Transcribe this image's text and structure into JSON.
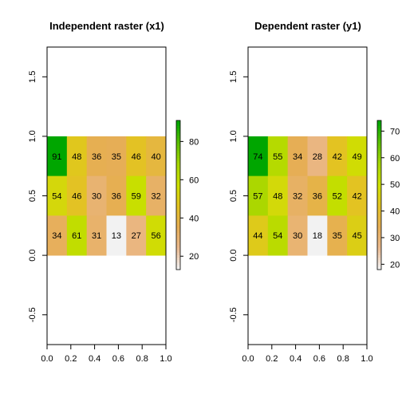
{
  "chart_data": [
    {
      "type": "heatmap",
      "title": "Independent raster (x1)",
      "xlabel": "",
      "ylabel": "",
      "xlim": [
        0.0,
        1.0
      ],
      "ylim": [
        -0.75,
        1.75
      ],
      "x_ticks": [
        "0.0",
        "0.2",
        "0.4",
        "0.6",
        "0.8",
        "1.0"
      ],
      "y_ticks": [
        "-0.5",
        "0.0",
        "0.5",
        "1.0",
        "1.5"
      ],
      "extent": {
        "xmin": 0.0,
        "xmax": 1.0,
        "ymin": 0.0,
        "ymax": 1.0
      },
      "grid": [
        [
          91,
          48,
          36,
          35,
          46,
          40
        ],
        [
          54,
          46,
          30,
          36,
          59,
          32
        ],
        [
          34,
          61,
          31,
          13,
          27,
          56
        ]
      ],
      "legend": {
        "min": 13,
        "max": 91,
        "ticks": [
          "20",
          "40",
          "60",
          "80"
        ]
      }
    },
    {
      "type": "heatmap",
      "title": "Dependent raster (y1)",
      "xlabel": "",
      "ylabel": "",
      "xlim": [
        0.0,
        1.0
      ],
      "ylim": [
        -0.75,
        1.75
      ],
      "x_ticks": [
        "0.0",
        "0.2",
        "0.4",
        "0.6",
        "0.8",
        "1.0"
      ],
      "y_ticks": [
        "-0.5",
        "0.0",
        "0.5",
        "1.0",
        "1.5"
      ],
      "extent": {
        "xmin": 0.0,
        "xmax": 1.0,
        "ymin": 0.0,
        "ymax": 1.0
      },
      "grid": [
        [
          74,
          55,
          34,
          28,
          42,
          49
        ],
        [
          57,
          48,
          32,
          36,
          52,
          42
        ],
        [
          44,
          54,
          30,
          18,
          35,
          45
        ]
      ],
      "legend": {
        "min": 18,
        "max": 74,
        "ticks": [
          "20",
          "30",
          "40",
          "50",
          "60",
          "70"
        ]
      }
    }
  ],
  "palette": [
    "#f2f2f2",
    "#ebb98f",
    "#e6ae55",
    "#e3c322",
    "#cde000",
    "#a6d600",
    "#5dbf00",
    "#00a600"
  ]
}
